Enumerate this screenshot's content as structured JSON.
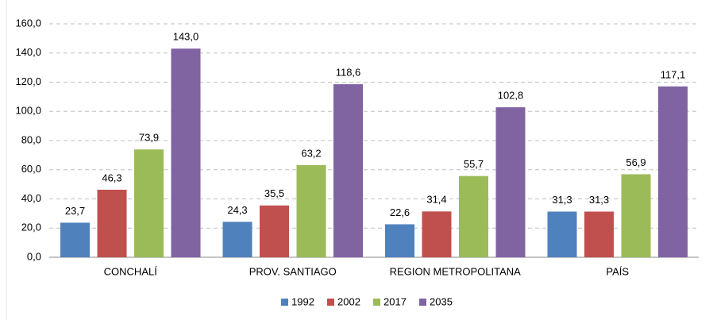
{
  "chart_data": {
    "type": "bar",
    "categories": [
      "CONCHALÍ",
      "PROV. SANTIAGO",
      "REGION METROPOLITANA",
      "PAÍS"
    ],
    "series": [
      {
        "name": "1992",
        "color": "#4f81bd",
        "values": [
          23.7,
          24.3,
          22.6,
          31.3
        ],
        "value_labels": [
          "23,7",
          "24,3",
          "22,6",
          "31,3"
        ]
      },
      {
        "name": "2002",
        "color": "#c0504d",
        "values": [
          46.3,
          35.5,
          31.4,
          31.3
        ],
        "value_labels": [
          "46,3",
          "35,5",
          "31,4",
          "31,3"
        ]
      },
      {
        "name": "2017",
        "color": "#9bbb59",
        "values": [
          73.9,
          63.2,
          55.7,
          56.9
        ],
        "value_labels": [
          "73,9",
          "63,2",
          "55,7",
          "56,9"
        ]
      },
      {
        "name": "2035",
        "color": "#8064a2",
        "values": [
          143.0,
          118.6,
          102.8,
          117.1
        ],
        "value_labels": [
          "143,0",
          "118,6",
          "102,8",
          "117,1"
        ]
      }
    ],
    "ylim": [
      0,
      160
    ],
    "yticks": [
      {
        "value": 0,
        "label": "0,0"
      },
      {
        "value": 20,
        "label": "20,0"
      },
      {
        "value": 40,
        "label": "40,0"
      },
      {
        "value": 60,
        "label": "60,0"
      },
      {
        "value": 80,
        "label": "80,0"
      },
      {
        "value": 100,
        "label": "100,0"
      },
      {
        "value": 120,
        "label": "120,0"
      },
      {
        "value": 140,
        "label": "140,0"
      },
      {
        "value": 160,
        "label": "160,0"
      }
    ],
    "grid": true,
    "legend": "bottom"
  }
}
